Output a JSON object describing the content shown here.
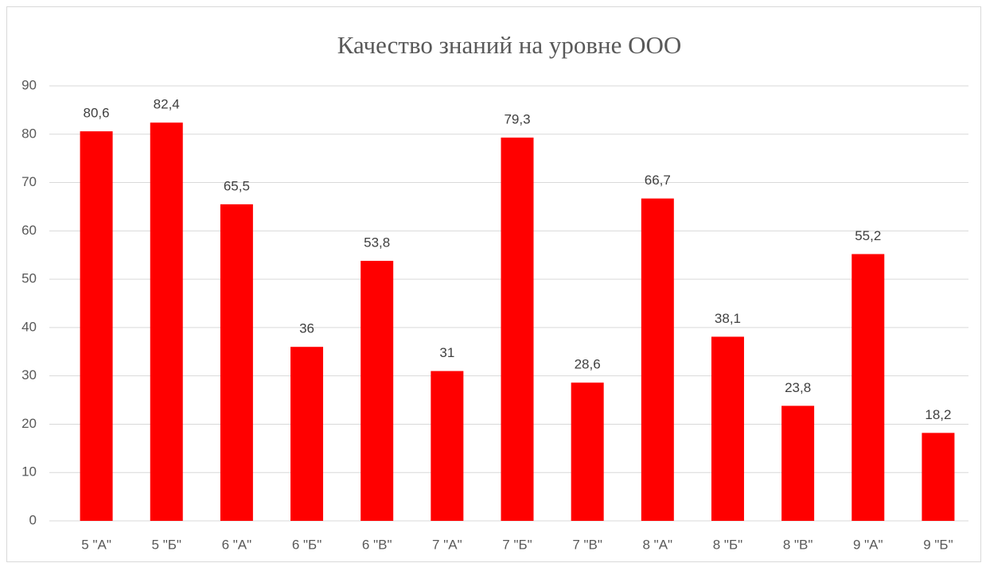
{
  "chart_data": {
    "type": "bar",
    "title": "Качество знаний на уровне ООО",
    "categories": [
      "5 \"А\"",
      "5 \"Б\"",
      "6 \"А\"",
      "6 \"Б\"",
      "6 \"В\"",
      "7 \"А\"",
      "7 \"Б\"",
      "7 \"В\"",
      "8 \"А\"",
      "8 \"Б\"",
      "8 \"В\"",
      "9 \"А\"",
      "9 \"Б\""
    ],
    "values": [
      80.6,
      82.4,
      65.5,
      36,
      53.8,
      31,
      79.3,
      28.6,
      66.7,
      38.1,
      23.8,
      55.2,
      18.2
    ],
    "value_labels": [
      "80,6",
      "82,4",
      "65,5",
      "36",
      "53,8",
      "31",
      "79,3",
      "28,6",
      "66,7",
      "38,1",
      "23,8",
      "55,2",
      "18,2"
    ],
    "color": "#ff0000",
    "ylim": [
      0,
      90
    ],
    "yticks": [
      0,
      10,
      20,
      30,
      40,
      50,
      60,
      70,
      80,
      90
    ],
    "grid": true
  }
}
